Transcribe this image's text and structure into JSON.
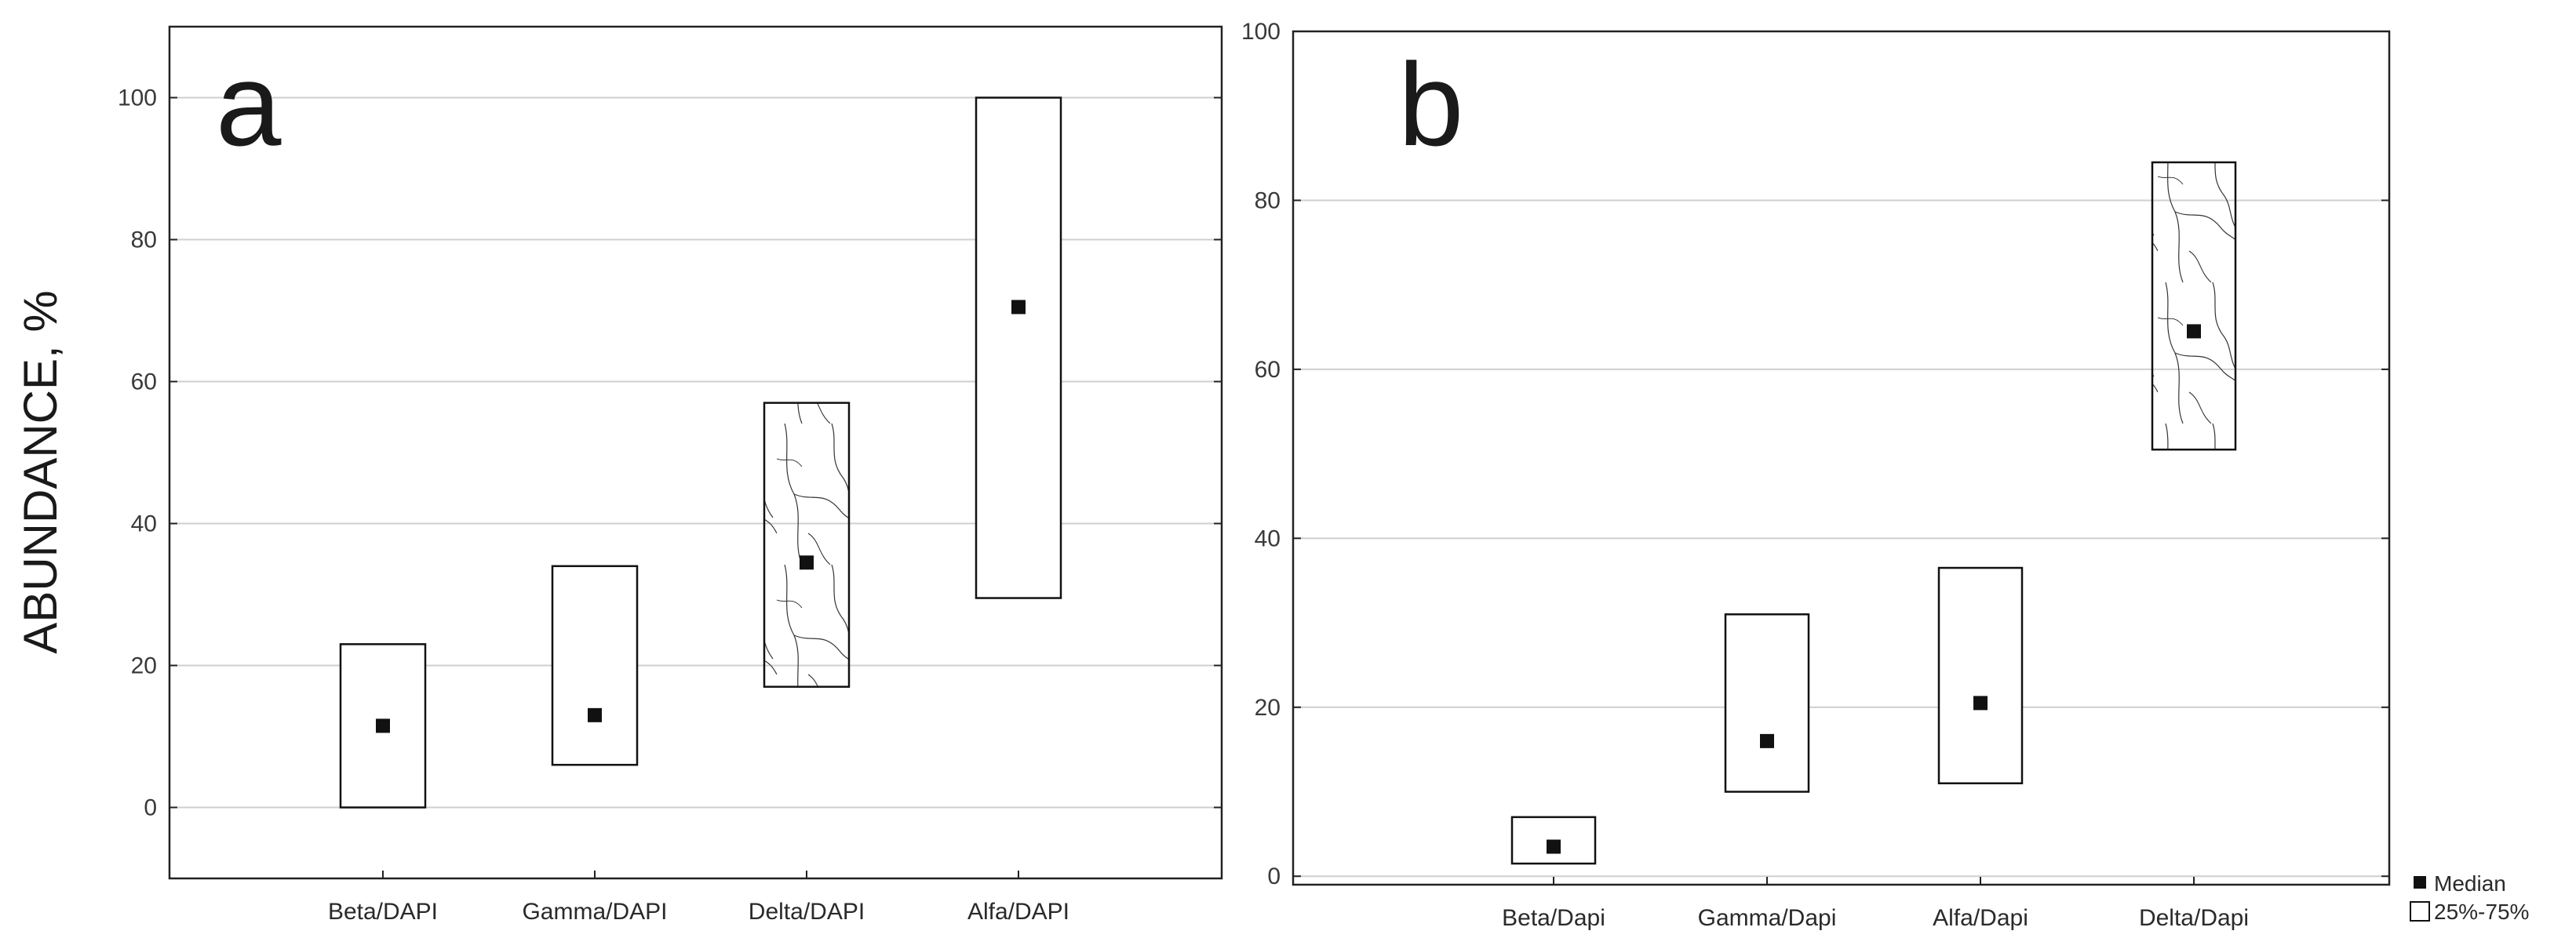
{
  "chart_data": [
    {
      "type": "box",
      "panel_label": "a",
      "ylabel": "ABUNDANCE, %",
      "xlabel": "",
      "ylim": [
        -10,
        110
      ],
      "yticks": [
        0,
        20,
        40,
        60,
        80,
        100
      ],
      "ytick_labels": [
        "0",
        "20",
        "40",
        "60",
        "80",
        "100"
      ],
      "grid": true,
      "categories": [
        "Beta/DAPI",
        "Gamma/DAPI",
        "Delta/DAPI",
        "Alfa/DAPI"
      ],
      "series": [
        {
          "median": [
            11.5,
            13,
            34.5,
            70.5
          ],
          "q25": [
            0,
            6,
            17,
            29.5
          ],
          "q75": [
            23,
            34,
            57,
            100
          ]
        }
      ],
      "pattern_fill": [
        false,
        false,
        true,
        false
      ]
    },
    {
      "type": "box",
      "panel_label": "b",
      "ylabel": "",
      "xlabel": "",
      "ylim": [
        -1,
        100
      ],
      "yticks": [
        0,
        20,
        40,
        60,
        80,
        100
      ],
      "ytick_labels": [
        "0",
        "20",
        "40",
        "60",
        "80",
        "100"
      ],
      "grid": true,
      "categories": [
        "Beta/Dapi",
        "Gamma/Dapi",
        "Alfa/Dapi",
        "Delta/Dapi"
      ],
      "series": [
        {
          "median": [
            3.5,
            16,
            20.5,
            64.5
          ],
          "q25": [
            1.5,
            10,
            11,
            50.5
          ],
          "q75": [
            7,
            31,
            36.5,
            84.5
          ]
        }
      ],
      "pattern_fill": [
        false,
        false,
        false,
        true
      ],
      "legend": {
        "position": "bottom-right",
        "entries": [
          "Median",
          "25%-75%"
        ]
      }
    }
  ]
}
